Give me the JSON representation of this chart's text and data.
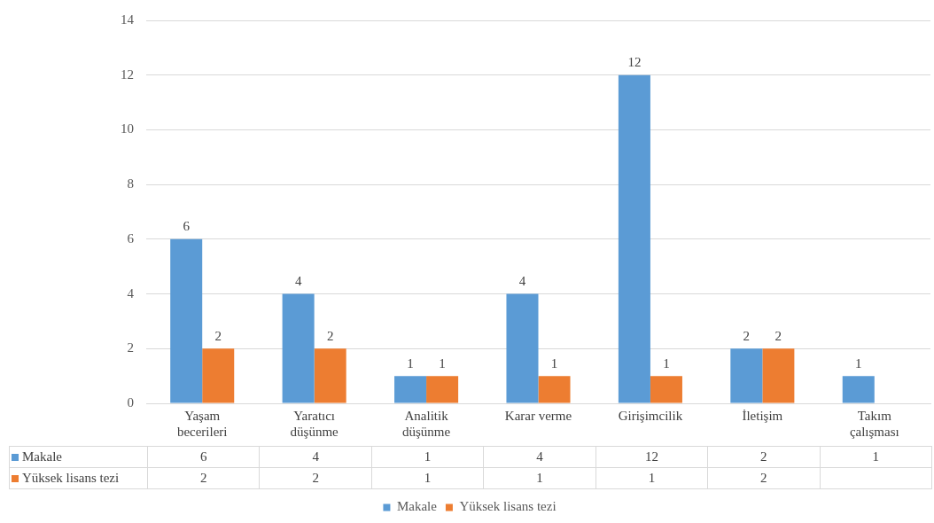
{
  "chart_data": {
    "type": "bar",
    "categories": [
      "Yaşam becerileri",
      "Yaratıcı düşünme",
      "Analitik düşünme",
      "Karar verme",
      "Girişimcilik",
      "İletişim",
      "Takım çalışması"
    ],
    "series": [
      {
        "name": "Makale",
        "color": "#5b9bd5",
        "values": [
          6,
          4,
          1,
          4,
          12,
          2,
          1
        ],
        "value_labels": [
          "6",
          "4",
          "1",
          "4",
          "12",
          "2",
          "1"
        ]
      },
      {
        "name": "Yüksek lisans tezi",
        "color": "#ed7d31",
        "values": [
          2,
          2,
          1,
          1,
          1,
          2,
          null
        ],
        "value_labels": [
          "2",
          "2",
          "1",
          "1",
          "1",
          "2",
          null
        ]
      }
    ],
    "annotations": [
      "6",
      "4",
      "1",
      "4",
      "12",
      "2",
      "1",
      "2",
      "2",
      "1",
      "1",
      "1",
      "2"
    ],
    "ylim": [
      0,
      14
    ],
    "yticks": [
      0,
      2,
      4,
      6,
      8,
      10,
      12,
      14
    ],
    "grid": "y",
    "legend": "bottom",
    "data_labels": true
  }
}
